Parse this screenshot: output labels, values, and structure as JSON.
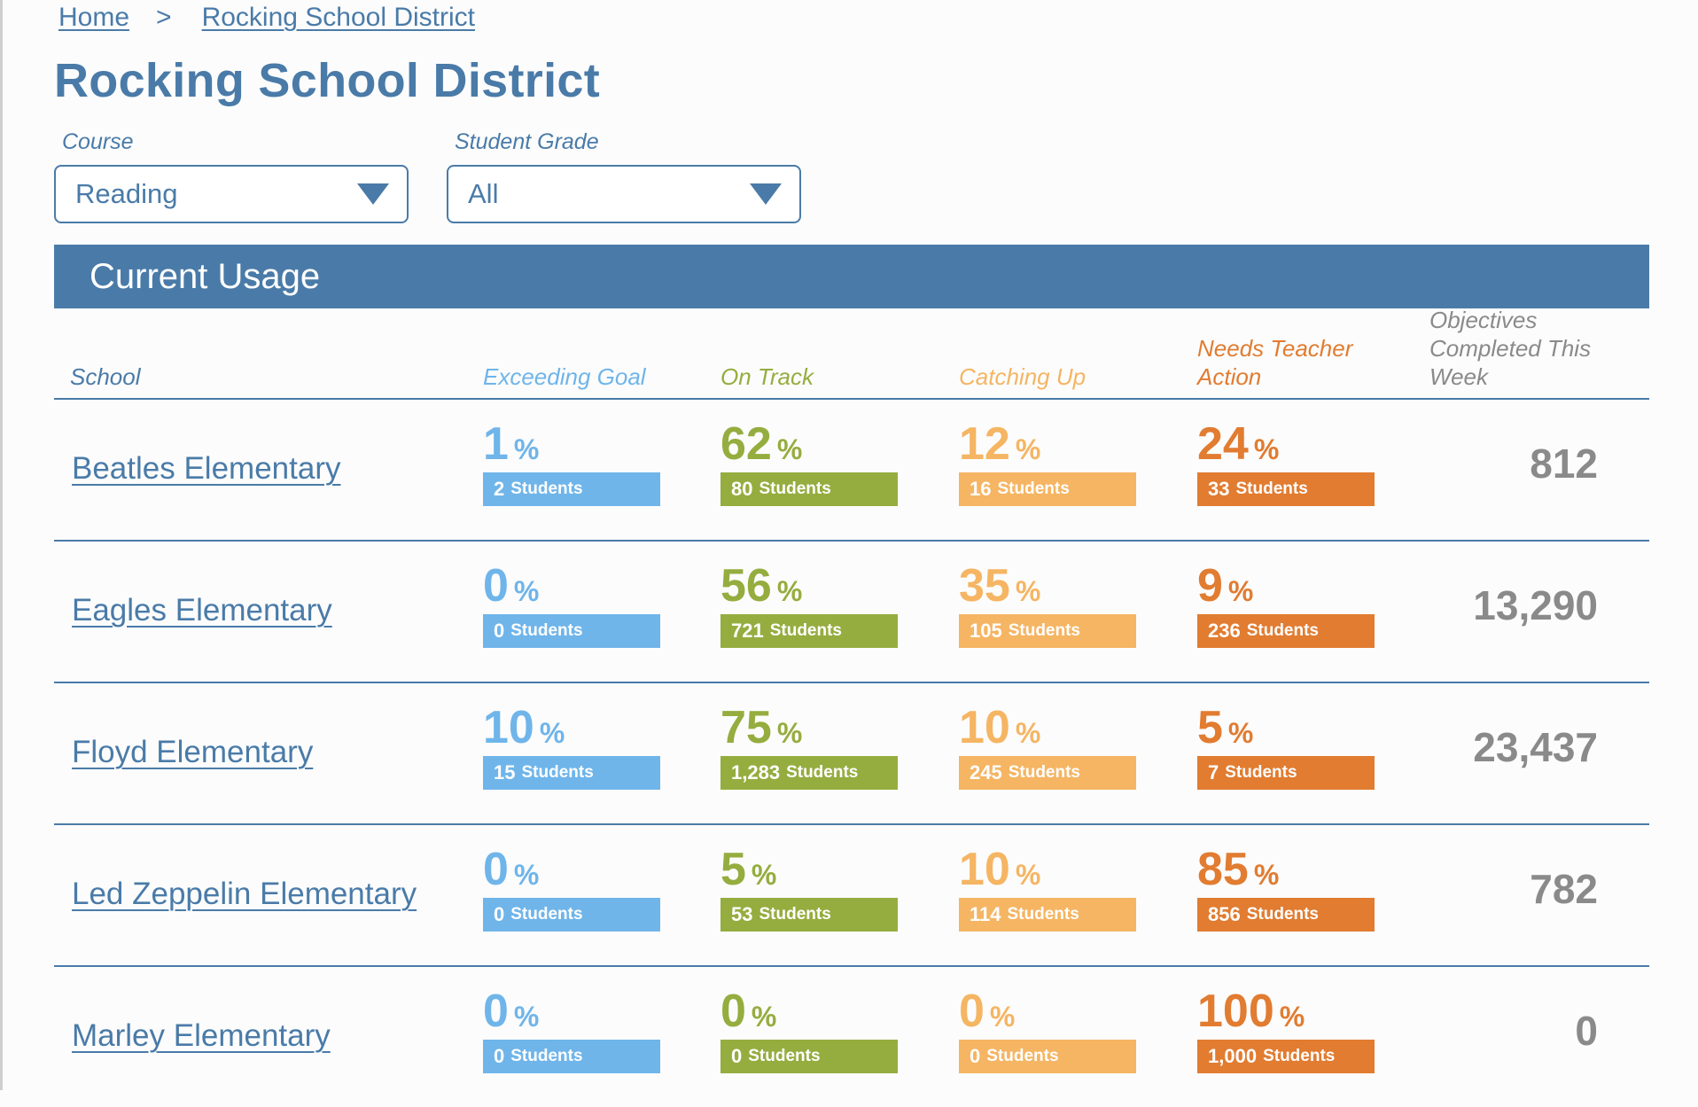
{
  "breadcrumb": {
    "home": "Home",
    "separator": ">",
    "current": "Rocking School District"
  },
  "page_title": "Rocking School District",
  "filters": {
    "course": {
      "label": "Course",
      "value": "Reading"
    },
    "grade": {
      "label": "Student Grade",
      "value": "All"
    }
  },
  "section": {
    "title": "Current Usage"
  },
  "colors": {
    "primary": "#4a7ba8",
    "exceeding": "#6fb5ea",
    "on_track": "#95ad3f",
    "catching_up": "#f5b563",
    "needs_action": "#e17c31",
    "objectives": "#8a8a8a"
  },
  "columns": {
    "school": "School",
    "exceeding": "Exceeding Goal",
    "on_track": "On Track",
    "catching_up": "Catching Up",
    "needs_action": "Needs Teacher Action",
    "objectives": "Objectives Completed This Week"
  },
  "units": {
    "percent": "%",
    "students": "Students"
  },
  "rows": [
    {
      "school": "Beatles Elementary",
      "exceeding": {
        "pct": "1",
        "students": "2"
      },
      "on_track": {
        "pct": "62",
        "students": "80"
      },
      "catching_up": {
        "pct": "12",
        "students": "16"
      },
      "needs_action": {
        "pct": "24",
        "students": "33"
      },
      "objectives": "812"
    },
    {
      "school": "Eagles Elementary",
      "exceeding": {
        "pct": "0",
        "students": "0"
      },
      "on_track": {
        "pct": "56",
        "students": "721"
      },
      "catching_up": {
        "pct": "35",
        "students": "105"
      },
      "needs_action": {
        "pct": "9",
        "students": "236"
      },
      "objectives": "13,290"
    },
    {
      "school": "Floyd Elementary",
      "exceeding": {
        "pct": "10",
        "students": "15"
      },
      "on_track": {
        "pct": "75",
        "students": "1,283"
      },
      "catching_up": {
        "pct": "10",
        "students": "245"
      },
      "needs_action": {
        "pct": "5",
        "students": "7"
      },
      "objectives": "23,437"
    },
    {
      "school": "Led Zeppelin Elementary",
      "exceeding": {
        "pct": "0",
        "students": "0"
      },
      "on_track": {
        "pct": "5",
        "students": "53"
      },
      "catching_up": {
        "pct": "10",
        "students": "114"
      },
      "needs_action": {
        "pct": "85",
        "students": "856"
      },
      "objectives": "782"
    },
    {
      "school": "Marley Elementary",
      "exceeding": {
        "pct": "0",
        "students": "0"
      },
      "on_track": {
        "pct": "0",
        "students": "0"
      },
      "catching_up": {
        "pct": "0",
        "students": "0"
      },
      "needs_action": {
        "pct": "100",
        "students": "1,000"
      },
      "objectives": "0"
    }
  ]
}
